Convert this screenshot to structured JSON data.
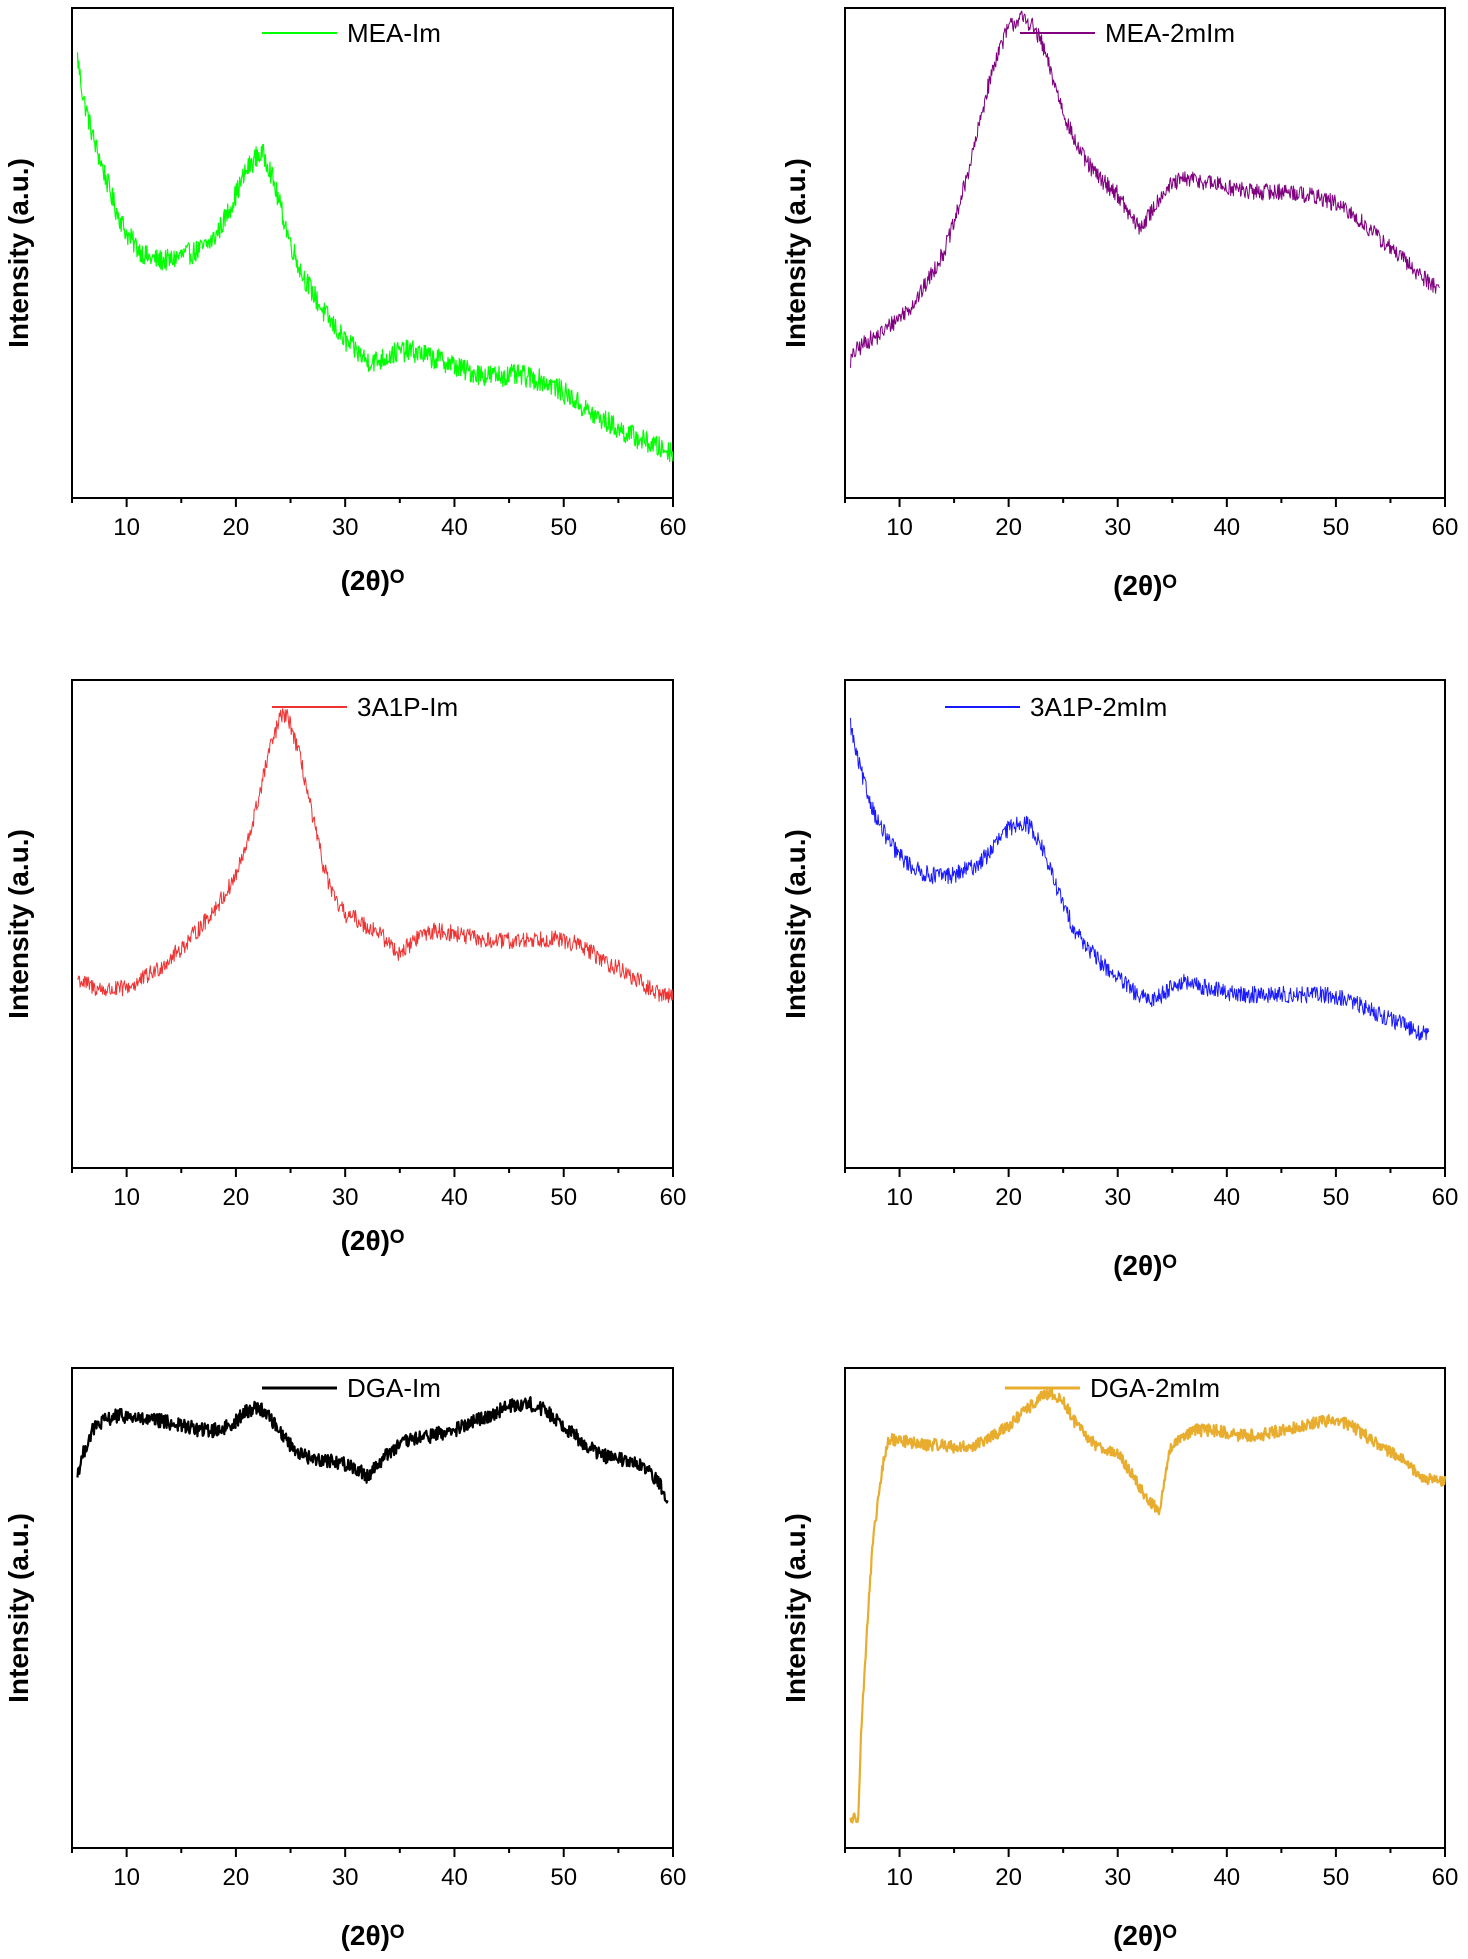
{
  "figure": {
    "xlabel": "(2θ)ᴼ",
    "ylabel": "Intensity (a.u.)",
    "x_ticks": [
      10,
      20,
      30,
      40,
      50,
      60
    ]
  },
  "chart_data": [
    {
      "type": "line",
      "series": [
        {
          "name": "MEA-Im",
          "color": "#00ff00"
        }
      ],
      "xlabel": "(2θ)ᴼ",
      "ylabel": "Intensity (a.u.)",
      "xlim": [
        5,
        60
      ],
      "ylim": [
        0,
        100
      ],
      "legend_position": "top-center",
      "noise": 0.045,
      "stroke": 1.2,
      "x": [
        5.5,
        6,
        7,
        8,
        9,
        10,
        11,
        12,
        13,
        14,
        15,
        16,
        17,
        18,
        19,
        20,
        21,
        22,
        22.5,
        23,
        24,
        25,
        26,
        27,
        28,
        29,
        30,
        31,
        32,
        33,
        34,
        35,
        36,
        37,
        38,
        39,
        40,
        41,
        42,
        43,
        44,
        45,
        46,
        47,
        48,
        49,
        50,
        51,
        52,
        53,
        54,
        55,
        56,
        57,
        58,
        59,
        60
      ],
      "y": [
        90,
        82,
        73,
        66,
        59,
        54,
        51,
        49,
        48.5,
        48.5,
        49.5,
        50,
        51,
        53,
        57,
        62,
        67,
        70,
        70,
        68,
        60,
        52,
        46,
        42,
        38,
        35,
        32,
        30,
        28,
        28,
        29,
        30,
        30,
        29.5,
        28.5,
        28,
        27,
        26,
        25.5,
        25,
        25,
        25,
        25,
        24.5,
        24,
        23,
        21.5,
        20,
        18,
        16.5,
        15.5,
        14,
        13,
        12,
        11,
        10,
        9.5
      ]
    },
    {
      "type": "line",
      "series": [
        {
          "name": "MEA-2mIm",
          "color": "#800080"
        }
      ],
      "xlabel": "(2θ)ᴼ",
      "ylabel": "Intensity (a.u.)",
      "xlim": [
        5,
        60
      ],
      "ylim": [
        0,
        100
      ],
      "legend_position": "top-right",
      "noise": 0.035,
      "stroke": 1,
      "x": [
        5.5,
        6,
        7,
        8,
        9,
        10,
        11,
        12,
        13,
        14,
        15,
        16,
        17,
        18,
        19,
        20,
        21,
        22,
        23,
        24,
        25,
        26,
        27,
        28,
        29,
        30,
        31,
        32,
        33,
        34,
        35,
        36,
        37,
        38,
        39,
        40,
        41,
        42,
        43,
        44,
        45,
        46,
        47,
        48,
        49,
        50,
        51,
        52,
        53,
        54,
        55,
        56,
        57,
        58,
        59,
        59.5
      ],
      "y": [
        28,
        30,
        32,
        33,
        35,
        37,
        39,
        42,
        46,
        50,
        56,
        64,
        73,
        83,
        91,
        96,
        98,
        97,
        93,
        86,
        79,
        73,
        69,
        66,
        64,
        62,
        58,
        55,
        58,
        62,
        64,
        65,
        65,
        64.5,
        64,
        63.5,
        63,
        62.5,
        62.5,
        62.5,
        62.5,
        62.5,
        62,
        61.5,
        61,
        60,
        58.5,
        57,
        55,
        53,
        51,
        49,
        47,
        45,
        43.5,
        42.5
      ]
    },
    {
      "type": "line",
      "series": [
        {
          "name": "3A1P-Im",
          "color": "#ee3333"
        }
      ],
      "xlabel": "(2θ)ᴼ",
      "ylabel": "Intensity (a.u.)",
      "xlim": [
        5,
        60
      ],
      "ylim": [
        0,
        100
      ],
      "legend_position": "top-center",
      "noise": 0.035,
      "stroke": 1,
      "x": [
        5.5,
        6,
        7,
        8,
        9,
        10,
        11,
        12,
        13,
        14,
        15,
        16,
        17,
        18,
        19,
        20,
        21,
        22,
        23,
        24,
        24.5,
        25,
        26,
        27,
        28,
        29,
        30,
        31,
        32,
        33,
        34,
        35,
        36,
        37,
        38,
        39,
        40,
        41,
        42,
        43,
        44,
        45,
        46,
        47,
        48,
        49,
        50,
        51,
        52,
        53,
        54,
        55,
        56,
        57,
        58,
        59,
        60
      ],
      "y": [
        39,
        38,
        37,
        36.5,
        36.5,
        37,
        38,
        39.5,
        41,
        43,
        45,
        47.5,
        50,
        53,
        56,
        60,
        66,
        75,
        85,
        92,
        93,
        91,
        83,
        72,
        62,
        55,
        52,
        51,
        49.5,
        48.5,
        46,
        44,
        46,
        48,
        48.5,
        48.5,
        48,
        47.5,
        47,
        46.5,
        46.5,
        46.5,
        46.5,
        47,
        47,
        47,
        46.5,
        46,
        45,
        43.5,
        42,
        41,
        39.5,
        38,
        36.5,
        35.5,
        35.5
      ]
    },
    {
      "type": "line",
      "series": [
        {
          "name": "3A1P-2mIm",
          "color": "#1a1aff"
        }
      ],
      "xlabel": "(2θ)ᴼ",
      "ylabel": "Intensity (a.u.)",
      "xlim": [
        5,
        60
      ],
      "ylim": [
        0,
        100
      ],
      "legend_position": "top-center",
      "noise": 0.035,
      "stroke": 1,
      "x": [
        5.5,
        6,
        7,
        8,
        9,
        10,
        11,
        12,
        13,
        14,
        15,
        16,
        17,
        18,
        19,
        20,
        21,
        22,
        23,
        24,
        25,
        26,
        27,
        28,
        29,
        30,
        31,
        32,
        33,
        34,
        35,
        36,
        37,
        38,
        39,
        40,
        41,
        42,
        43,
        44,
        45,
        46,
        47,
        48,
        49,
        50,
        51,
        52,
        53,
        54,
        55,
        56,
        57,
        58,
        58.5
      ],
      "y": [
        91,
        85,
        77,
        71,
        67,
        64,
        62,
        60.5,
        60,
        60,
        60,
        61,
        62,
        64,
        67,
        69.5,
        71,
        70,
        66,
        60,
        54,
        49,
        46,
        43,
        41,
        39,
        37,
        35,
        34.5,
        35.5,
        37.5,
        38,
        37.5,
        37,
        36.5,
        36,
        35.5,
        35.5,
        35.5,
        35.5,
        35.5,
        35.5,
        35.5,
        35.5,
        35.5,
        35,
        34.5,
        33.5,
        32.5,
        31.5,
        30.5,
        29.5,
        28.5,
        27.5,
        27
      ]
    },
    {
      "type": "line",
      "series": [
        {
          "name": "DGA-Im",
          "color": "#000000"
        }
      ],
      "xlabel": "(2θ)ᴼ",
      "ylabel": "Intensity (a.u.)",
      "xlim": [
        5,
        60
      ],
      "ylim": [
        0,
        100
      ],
      "legend_position": "top-center",
      "noise": 0.03,
      "stroke": 2.2,
      "x": [
        5.5,
        6,
        6.5,
        7,
        8,
        9,
        10,
        11,
        12,
        13,
        14,
        15,
        16,
        17,
        18,
        19,
        20,
        21,
        22,
        23,
        24,
        25,
        26,
        27,
        28,
        29,
        30,
        31,
        32,
        33,
        34,
        35,
        36,
        37,
        38,
        39,
        40,
        41,
        42,
        43,
        44,
        45,
        46,
        47,
        48,
        49,
        50,
        51,
        52,
        53,
        54,
        55,
        56,
        57,
        58,
        59,
        59.5
      ],
      "y": [
        78,
        82,
        85,
        87.5,
        89,
        90,
        90,
        89.5,
        89,
        89,
        88.5,
        88,
        87.5,
        87,
        87,
        87.5,
        89,
        91,
        92,
        90,
        87,
        84,
        82,
        81,
        81,
        80.5,
        80,
        79,
        77.5,
        80,
        82.5,
        84,
        85,
        85.5,
        86,
        86.5,
        87,
        88,
        89,
        90,
        91,
        92,
        92.5,
        92.5,
        91.5,
        90,
        88,
        86,
        84,
        82.5,
        81.5,
        81,
        80.5,
        79.5,
        78,
        75,
        73
      ]
    },
    {
      "type": "line",
      "series": [
        {
          "name": "DGA-2mIm",
          "color": "#e8ad2e"
        }
      ],
      "xlabel": "(2θ)ᴼ",
      "ylabel": "Intensity (a.u.)",
      "xlim": [
        5,
        60
      ],
      "ylim": [
        0,
        100
      ],
      "legend_position": "top-center",
      "noise": 0.025,
      "stroke": 2.2,
      "x": [
        5.5,
        6.2,
        6.5,
        7,
        7.5,
        8,
        8.5,
        9,
        10,
        11,
        12,
        13,
        14,
        15,
        16,
        17,
        18,
        19,
        20,
        21,
        22,
        23,
        24,
        25,
        26,
        27,
        28,
        29,
        30,
        31,
        32,
        33,
        33.8,
        34.5,
        35,
        36,
        37,
        38,
        39,
        40,
        41,
        42,
        43,
        44,
        45,
        46,
        47,
        48,
        49,
        50,
        51,
        52,
        53,
        54,
        55,
        56,
        57,
        58,
        59,
        60
      ],
      "y": [
        6,
        6.5,
        25,
        45,
        62,
        72,
        80,
        85,
        85,
        84.5,
        84,
        84,
        84,
        83.5,
        83.5,
        84,
        85,
        86.5,
        88,
        90,
        92,
        94,
        94.5,
        93,
        89,
        86,
        84,
        83,
        82,
        79,
        75,
        72,
        70,
        80,
        84,
        86,
        87,
        87,
        87,
        86.5,
        86,
        86,
        86,
        86.5,
        87,
        87.5,
        88,
        88.5,
        89,
        89,
        88.5,
        87,
        85.5,
        84,
        82.5,
        81,
        79,
        77,
        76.5,
        76.5
      ]
    }
  ]
}
